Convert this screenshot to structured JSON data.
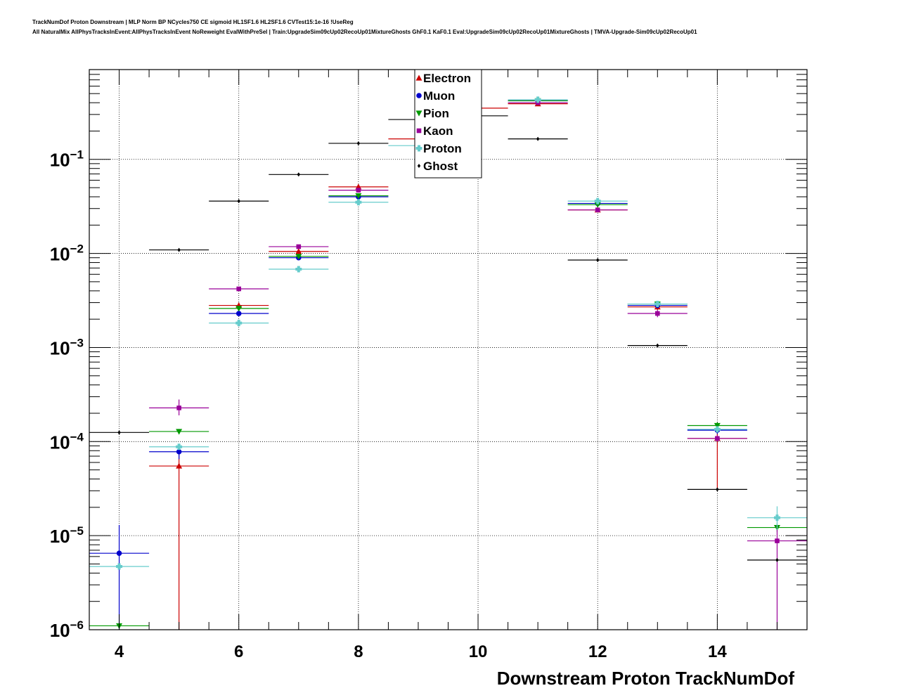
{
  "header": {
    "title_line1": "TrackNumDof Proton Downstream | MLP Norm BP NCycles750 CE sigmoid HL1SF1.6 HL2SF1.6 CVTest15:1e-16 !UseReg",
    "title_line2": "All NaturalMix AllPhysTracksInEvent:AllPhysTracksInEvent NoReweight EvalWithPreSel | Train:UpgradeSim09cUp02RecoUp01MixtureGhosts GhF0.1 KaF0.1 Eval:UpgradeSim09cUp02RecoUp01MixtureGhosts | TMVA-Upgrade-Sim09cUp02RecoUp01"
  },
  "chart_data": {
    "type": "scatter",
    "xlabel": "Downstream Proton TrackNumDof",
    "ylabel": "",
    "xlim": [
      3.5,
      15.5
    ],
    "ylim": [
      1e-06,
      0.9
    ],
    "yscale": "log",
    "grid": true,
    "legend_position": "top-center",
    "x_ticks": [
      {
        "value": 4,
        "label": "4"
      },
      {
        "value": 6,
        "label": "6"
      },
      {
        "value": 8,
        "label": "8"
      },
      {
        "value": 10,
        "label": "10"
      },
      {
        "value": 12,
        "label": "12"
      },
      {
        "value": 14,
        "label": "14"
      }
    ],
    "y_ticks": [
      {
        "value": 1e-06,
        "base": "10",
        "exp": "−6"
      },
      {
        "value": 1e-05,
        "base": "10",
        "exp": "−5"
      },
      {
        "value": 0.0001,
        "base": "10",
        "exp": "−4"
      },
      {
        "value": 0.001,
        "base": "10",
        "exp": "−3"
      },
      {
        "value": 0.01,
        "base": "10",
        "exp": "−2"
      },
      {
        "value": 0.1,
        "base": "10",
        "exp": "−1"
      }
    ],
    "bin_half_width": 0.5,
    "series": [
      {
        "name": "Electron",
        "color": "#cc0000",
        "marker": "triangle-up",
        "points": [
          {
            "x": 5,
            "y": 5.5e-05,
            "ylo": 1e-06,
            "yhi": 7.5e-05
          },
          {
            "x": 6,
            "y": 0.0028,
            "ylo": 0.0026,
            "yhi": 0.003
          },
          {
            "x": 7,
            "y": 0.0105,
            "ylo": 0.0102,
            "yhi": 0.0108
          },
          {
            "x": 8,
            "y": 0.051,
            "ylo": 0.05,
            "yhi": 0.052
          },
          {
            "x": 9,
            "y": 0.165
          },
          {
            "x": 10,
            "y": 0.35
          },
          {
            "x": 11,
            "y": 0.39,
            "ylo": 0.385,
            "yhi": 0.395
          },
          {
            "x": 12,
            "y": 0.029,
            "ylo": 0.0285,
            "yhi": 0.0295
          },
          {
            "x": 13,
            "y": 0.0027,
            "ylo": 0.0025,
            "yhi": 0.0029
          },
          {
            "x": 14,
            "y": 0.000108,
            "ylo": 3e-05,
            "yhi": 0.00013
          }
        ]
      },
      {
        "name": "Muon",
        "color": "#0000cc",
        "marker": "circle",
        "points": [
          {
            "x": 4,
            "y": 6.5e-06,
            "ylo": 1e-06,
            "yhi": 1.3e-05
          },
          {
            "x": 5,
            "y": 7.8e-05,
            "ylo": 6.5e-05,
            "yhi": 9.2e-05
          },
          {
            "x": 6,
            "y": 0.0023,
            "ylo": 0.0022,
            "yhi": 0.0024
          },
          {
            "x": 7,
            "y": 0.009,
            "ylo": 0.0088,
            "yhi": 0.0092
          },
          {
            "x": 8,
            "y": 0.04,
            "ylo": 0.039,
            "yhi": 0.041
          },
          {
            "x": 11,
            "y": 0.42,
            "ylo": 0.415,
            "yhi": 0.425
          },
          {
            "x": 12,
            "y": 0.034,
            "ylo": 0.0335,
            "yhi": 0.0345
          },
          {
            "x": 13,
            "y": 0.0028,
            "ylo": 0.0026,
            "yhi": 0.003
          },
          {
            "x": 14,
            "y": 0.000132,
            "ylo": 0.00012,
            "yhi": 0.000145
          }
        ]
      },
      {
        "name": "Pion",
        "color": "#009900",
        "marker": "triangle-down",
        "points": [
          {
            "x": 4,
            "y": 1.1e-06
          },
          {
            "x": 5,
            "y": 0.000128,
            "ylo": 0.00012,
            "yhi": 0.000136
          },
          {
            "x": 6,
            "y": 0.0026,
            "ylo": 0.0025,
            "yhi": 0.0027
          },
          {
            "x": 7,
            "y": 0.0093,
            "ylo": 0.0091,
            "yhi": 0.0095
          },
          {
            "x": 8,
            "y": 0.041,
            "ylo": 0.04,
            "yhi": 0.042
          },
          {
            "x": 11,
            "y": 0.42,
            "ylo": 0.415,
            "yhi": 0.425
          },
          {
            "x": 12,
            "y": 0.033,
            "ylo": 0.0325,
            "yhi": 0.0335
          },
          {
            "x": 13,
            "y": 0.0029,
            "ylo": 0.0027,
            "yhi": 0.0031
          },
          {
            "x": 14,
            "y": 0.000148,
            "ylo": 0.000135,
            "yhi": 0.00016
          },
          {
            "x": 15,
            "y": 1.22e-05,
            "ylo": 1.1e-05,
            "yhi": 1.35e-05
          }
        ]
      },
      {
        "name": "Kaon",
        "color": "#990099",
        "marker": "square",
        "points": [
          {
            "x": 5,
            "y": 0.000228,
            "ylo": 0.00019,
            "yhi": 0.00028
          },
          {
            "x": 6,
            "y": 0.0042,
            "ylo": 0.0041,
            "yhi": 0.0043
          },
          {
            "x": 7,
            "y": 0.0118,
            "ylo": 0.0115,
            "yhi": 0.0121
          },
          {
            "x": 8,
            "y": 0.047,
            "ylo": 0.046,
            "yhi": 0.048
          },
          {
            "x": 11,
            "y": 0.4,
            "ylo": 0.395,
            "yhi": 0.405
          },
          {
            "x": 12,
            "y": 0.029,
            "ylo": 0.0285,
            "yhi": 0.0295
          },
          {
            "x": 13,
            "y": 0.0023,
            "ylo": 0.0021,
            "yhi": 0.0025
          },
          {
            "x": 14,
            "y": 0.000108,
            "ylo": 0.0001,
            "yhi": 0.000116
          },
          {
            "x": 15,
            "y": 8.8e-06,
            "ylo": 1e-06,
            "yhi": 1.3e-05
          }
        ]
      },
      {
        "name": "Proton",
        "color": "#66cccc",
        "marker": "cross",
        "points": [
          {
            "x": 4,
            "y": 4.7e-06
          },
          {
            "x": 5,
            "y": 8.8e-05,
            "ylo": 8.3e-05,
            "yhi": 9.3e-05
          },
          {
            "x": 6,
            "y": 0.00182,
            "ylo": 0.00177,
            "yhi": 0.00187
          },
          {
            "x": 7,
            "y": 0.0068,
            "ylo": 0.0066,
            "yhi": 0.007
          },
          {
            "x": 8,
            "y": 0.035,
            "ylo": 0.034,
            "yhi": 0.036
          },
          {
            "x": 9,
            "y": 0.14
          },
          {
            "x": 11,
            "y": 0.43,
            "ylo": 0.425,
            "yhi": 0.435
          },
          {
            "x": 12,
            "y": 0.036,
            "ylo": 0.0355,
            "yhi": 0.0365
          },
          {
            "x": 13,
            "y": 0.0029,
            "ylo": 0.0027,
            "yhi": 0.0031
          },
          {
            "x": 14,
            "y": 0.000135,
            "ylo": 0.000128,
            "yhi": 0.000142
          },
          {
            "x": 15,
            "y": 1.55e-05,
            "ylo": 1.15e-05,
            "yhi": 2.05e-05
          }
        ]
      },
      {
        "name": "Ghost",
        "color": "#000000",
        "marker": "diamond",
        "points": [
          {
            "x": 4,
            "y": 0.000125
          },
          {
            "x": 5,
            "y": 0.0109
          },
          {
            "x": 6,
            "y": 0.036
          },
          {
            "x": 7,
            "y": 0.069
          },
          {
            "x": 8,
            "y": 0.148
          },
          {
            "x": 9,
            "y": 0.265
          },
          {
            "x": 10,
            "y": 0.29
          },
          {
            "x": 11,
            "y": 0.165
          },
          {
            "x": 12,
            "y": 0.0085
          },
          {
            "x": 13,
            "y": 0.00105
          },
          {
            "x": 14,
            "y": 3.1e-05
          },
          {
            "x": 15,
            "y": 5.5e-06
          }
        ]
      }
    ]
  }
}
